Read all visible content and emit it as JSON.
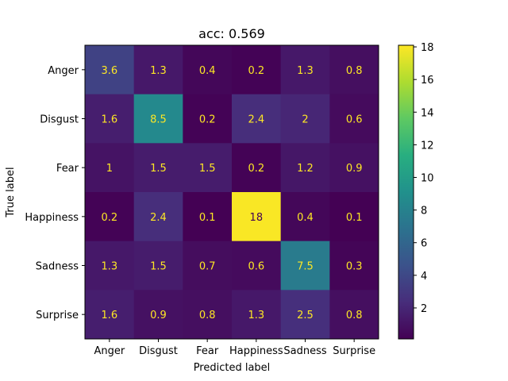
{
  "chart_data": {
    "type": "heatmap",
    "title": "acc: 0.569",
    "xlabel": "Predicted label",
    "ylabel": "True label",
    "x_categories": [
      "Anger",
      "Disgust",
      "Fear",
      "Happiness",
      "Sadness",
      "Surprise"
    ],
    "y_categories": [
      "Anger",
      "Disgust",
      "Fear",
      "Happiness",
      "Sadness",
      "Surprise"
    ],
    "values": [
      [
        3.6,
        1.3,
        0.4,
        0.2,
        1.3,
        0.8
      ],
      [
        1.6,
        8.5,
        0.2,
        2.4,
        2,
        0.6
      ],
      [
        1,
        1.5,
        1.5,
        0.2,
        1.2,
        0.9
      ],
      [
        0.2,
        2.4,
        0.1,
        18,
        0.4,
        0.1
      ],
      [
        1.3,
        1.5,
        0.7,
        0.6,
        7.5,
        0.3
      ],
      [
        1.6,
        0.9,
        0.8,
        1.3,
        2.5,
        0.8
      ]
    ],
    "colorbar": {
      "colormap": "viridis",
      "vmin": 0.1,
      "vmax": 18.1,
      "ticks": [
        2,
        4,
        6,
        8,
        10,
        12,
        14,
        16,
        18
      ]
    },
    "text_colors": {
      "light": "#fde725",
      "dark": "#440154"
    }
  }
}
